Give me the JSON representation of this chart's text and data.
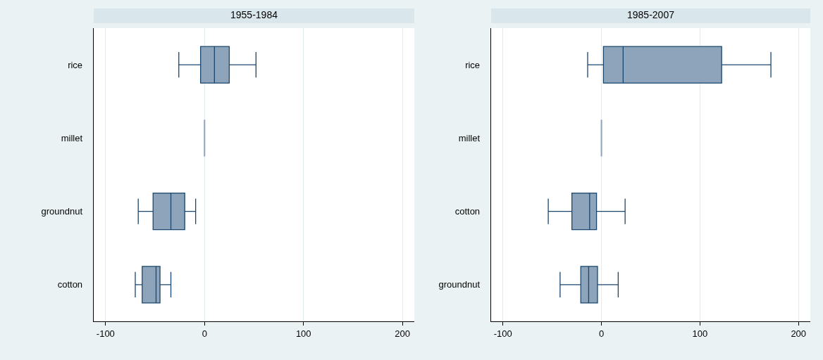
{
  "chart_data": [
    {
      "type": "box",
      "title": "1955-1984",
      "orientation": "horizontal",
      "categories": [
        "rice",
        "millet",
        "groundnut",
        "cotton"
      ],
      "xlim": [
        -112,
        212
      ],
      "xticks": [
        -100,
        0,
        100,
        200
      ],
      "grid": "x",
      "series": [
        {
          "color": "#8ea4ba",
          "boxes": [
            {
              "low": -26,
              "q1": -4,
              "median": 10,
              "q3": 25,
              "high": 52
            },
            {
              "low": 0,
              "q1": 0,
              "median": 0,
              "q3": 0,
              "high": 0
            },
            {
              "low": -67,
              "q1": -52,
              "median": -34,
              "q3": -20,
              "high": -9
            },
            {
              "low": -70,
              "q1": -63,
              "median": -49,
              "q3": -45,
              "high": -34
            }
          ]
        }
      ]
    },
    {
      "type": "box",
      "title": "1985-2007",
      "orientation": "horizontal",
      "categories": [
        "rice",
        "millet",
        "cotton",
        "groundnut"
      ],
      "xlim": [
        -112,
        212
      ],
      "xticks": [
        -100,
        0,
        100,
        200
      ],
      "grid": "x",
      "series": [
        {
          "color": "#8ea4ba",
          "boxes": [
            {
              "low": -14,
              "q1": 2,
              "median": 22,
              "q3": 122,
              "high": 172
            },
            {
              "low": 0,
              "q1": 0,
              "median": 0,
              "q3": 0,
              "high": 0
            },
            {
              "low": -54,
              "q1": -30,
              "median": -12,
              "q3": -5,
              "high": 24
            },
            {
              "low": -42,
              "q1": -21,
              "median": -13,
              "q3": -4,
              "high": 17
            }
          ]
        }
      ]
    }
  ]
}
